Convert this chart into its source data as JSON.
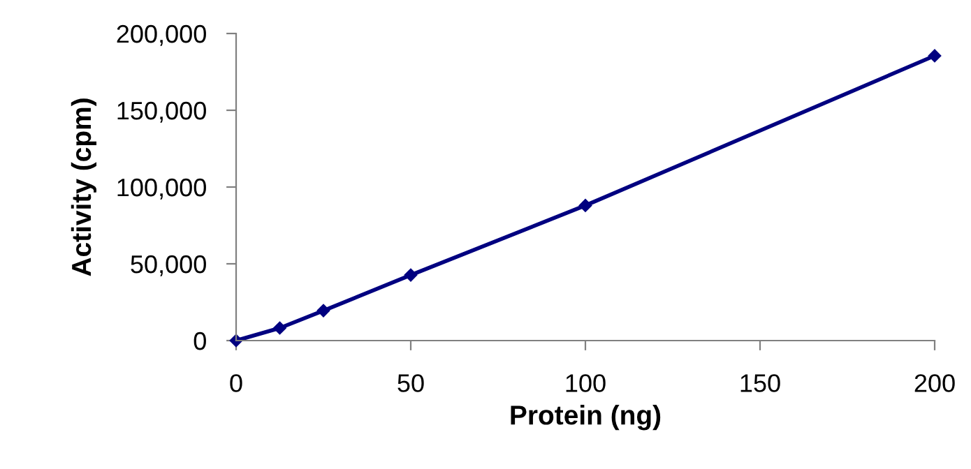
{
  "chart_data": {
    "type": "line",
    "xlabel": "Protein (ng)",
    "ylabel": "Activity (cpm)",
    "x": [
      0,
      12.5,
      25,
      50,
      100,
      200
    ],
    "series": [
      {
        "color": "#000080",
        "values": [
          0,
          8200,
          19500,
          42700,
          88000,
          185500
        ]
      }
    ],
    "xlim": [
      0,
      200
    ],
    "xticks": [
      0,
      50,
      100,
      150,
      200
    ],
    "ylim": [
      0,
      200000
    ],
    "yticks": [
      {
        "value": 0,
        "label": "0"
      },
      {
        "value": 50000,
        "label": "50,000"
      },
      {
        "value": 100000,
        "label": "100,000"
      },
      {
        "value": 150000,
        "label": "150,000"
      },
      {
        "value": 200000,
        "label": "200,000"
      }
    ],
    "marker": "diamond",
    "line_style": "solid",
    "grid": false,
    "legend": false
  }
}
